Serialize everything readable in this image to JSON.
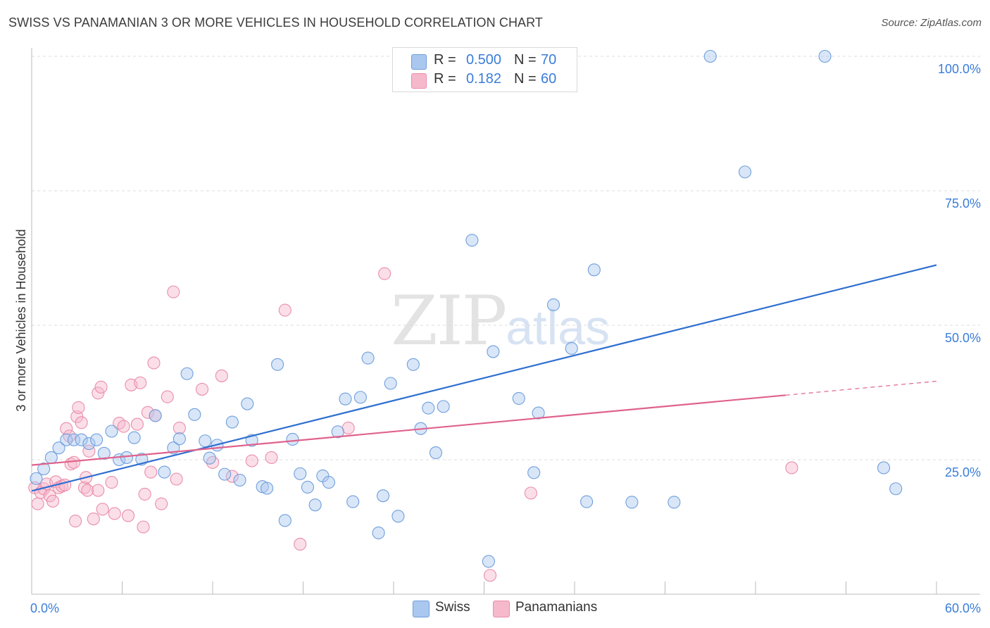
{
  "header": {
    "title": "SWISS VS PANAMANIAN 3 OR MORE VEHICLES IN HOUSEHOLD CORRELATION CHART",
    "source": "Source: ZipAtlas.com"
  },
  "watermark": {
    "zip": "ZIP",
    "atlas": "atlas"
  },
  "legend": {
    "rows": [
      {
        "r_label": "R =",
        "r_value": "0.500",
        "n_label": "N =",
        "n_value": "70",
        "color": "#aac8ef"
      },
      {
        "r_label": "R =",
        "r_value": "0.182",
        "n_label": "N =",
        "n_value": "60",
        "color": "#f6b9cc"
      }
    ]
  },
  "bottom_legend": [
    {
      "label": "Swiss",
      "color": "#aac8ef"
    },
    {
      "label": "Panamanians",
      "color": "#f6b9cc"
    }
  ],
  "chart_data": {
    "type": "scatter",
    "title": "SWISS VS PANAMANIAN 3 OR MORE VEHICLES IN HOUSEHOLD CORRELATION CHART",
    "xlabel": "",
    "ylabel": "3 or more Vehicles in Household",
    "xlim": [
      0,
      60
    ],
    "ylim": [
      0,
      100
    ],
    "x_tick_labels": [
      {
        "value": 0,
        "label": "0.0%"
      },
      {
        "value": 60,
        "label": "60.0%"
      }
    ],
    "y_tick_labels": [
      {
        "value": 25,
        "label": "25.0%"
      },
      {
        "value": 50,
        "label": "50.0%"
      },
      {
        "value": 75,
        "label": "75.0%"
      },
      {
        "value": 100,
        "label": "100.0%"
      }
    ],
    "colors": {
      "swiss_fill": "#aac8ef",
      "swiss_stroke": "#6f9fdc",
      "swiss_line": "#2f6fd0",
      "pan_fill": "#f6b9cc",
      "pan_stroke": "#ea8dab",
      "pan_line": "#e0628c",
      "grid": "#dcdcdc",
      "axis": "#bbbbbb",
      "tick_text": "#3b7dd8"
    },
    "series": [
      {
        "name": "Swiss",
        "trend": {
          "x0": 0,
          "y0": 19.2,
          "x1": 60,
          "y1": 61.2
        },
        "points": [
          [
            0.3,
            21.5
          ],
          [
            0.8,
            23.3
          ],
          [
            1.3,
            25.4
          ],
          [
            1.8,
            27.2
          ],
          [
            2.3,
            28.7
          ],
          [
            2.8,
            28.7
          ],
          [
            3.3,
            28.7
          ],
          [
            3.8,
            28.0
          ],
          [
            4.3,
            28.7
          ],
          [
            4.8,
            26.2
          ],
          [
            5.3,
            30.3
          ],
          [
            5.8,
            25.0
          ],
          [
            6.3,
            25.4
          ],
          [
            6.8,
            29.1
          ],
          [
            7.3,
            25.1
          ],
          [
            8.2,
            33.2
          ],
          [
            8.8,
            22.7
          ],
          [
            9.4,
            27.2
          ],
          [
            9.8,
            28.9
          ],
          [
            10.3,
            41.0
          ],
          [
            10.8,
            33.4
          ],
          [
            11.5,
            28.5
          ],
          [
            11.8,
            25.3
          ],
          [
            12.3,
            27.7
          ],
          [
            12.8,
            22.3
          ],
          [
            13.3,
            32.0
          ],
          [
            13.8,
            21.2
          ],
          [
            14.3,
            35.4
          ],
          [
            14.6,
            28.6
          ],
          [
            15.3,
            20.0
          ],
          [
            15.6,
            19.7
          ],
          [
            16.3,
            42.7
          ],
          [
            16.8,
            13.7
          ],
          [
            17.3,
            28.8
          ],
          [
            17.8,
            22.4
          ],
          [
            18.3,
            19.9
          ],
          [
            18.8,
            16.6
          ],
          [
            19.3,
            22.0
          ],
          [
            19.7,
            20.8
          ],
          [
            20.3,
            30.2
          ],
          [
            20.8,
            36.3
          ],
          [
            21.3,
            17.2
          ],
          [
            21.8,
            36.6
          ],
          [
            22.3,
            43.9
          ],
          [
            23.0,
            11.4
          ],
          [
            23.3,
            18.3
          ],
          [
            23.8,
            39.2
          ],
          [
            24.3,
            14.5
          ],
          [
            25.3,
            42.7
          ],
          [
            25.8,
            30.8
          ],
          [
            26.3,
            34.6
          ],
          [
            26.8,
            26.3
          ],
          [
            27.3,
            34.9
          ],
          [
            29.2,
            65.8
          ],
          [
            30.3,
            6.1
          ],
          [
            30.6,
            45.1
          ],
          [
            32.3,
            36.4
          ],
          [
            33.3,
            22.6
          ],
          [
            33.6,
            33.7
          ],
          [
            34.6,
            53.8
          ],
          [
            35.8,
            45.7
          ],
          [
            36.8,
            17.2
          ],
          [
            37.3,
            60.3
          ],
          [
            39.8,
            17.1
          ],
          [
            42.6,
            17.1
          ],
          [
            45.0,
            100.0
          ],
          [
            47.3,
            78.5
          ],
          [
            52.6,
            100.0
          ],
          [
            56.5,
            23.5
          ],
          [
            57.3,
            19.6
          ]
        ]
      },
      {
        "name": "Panamanians",
        "trend": {
          "x0": 0,
          "y0": 24.0,
          "x1": 50,
          "y1": 37.0,
          "x_dash_end": 60,
          "y_dash_end": 39.6
        },
        "points": [
          [
            0.2,
            19.8
          ],
          [
            0.4,
            16.8
          ],
          [
            0.6,
            18.9
          ],
          [
            0.8,
            19.6
          ],
          [
            1.0,
            20.5
          ],
          [
            1.2,
            18.3
          ],
          [
            1.4,
            17.3
          ],
          [
            1.6,
            20.9
          ],
          [
            1.8,
            19.8
          ],
          [
            2.0,
            20.1
          ],
          [
            2.2,
            20.3
          ],
          [
            2.3,
            30.8
          ],
          [
            2.5,
            29.4
          ],
          [
            2.6,
            24.2
          ],
          [
            2.8,
            24.5
          ],
          [
            2.9,
            13.6
          ],
          [
            3.0,
            33.0
          ],
          [
            3.1,
            34.7
          ],
          [
            3.3,
            31.9
          ],
          [
            3.5,
            19.8
          ],
          [
            3.6,
            21.7
          ],
          [
            3.7,
            19.3
          ],
          [
            3.8,
            26.6
          ],
          [
            4.1,
            14.0
          ],
          [
            4.4,
            37.4
          ],
          [
            4.4,
            19.3
          ],
          [
            4.6,
            38.5
          ],
          [
            4.7,
            15.8
          ],
          [
            5.3,
            20.8
          ],
          [
            5.5,
            15.0
          ],
          [
            5.8,
            31.8
          ],
          [
            6.1,
            31.2
          ],
          [
            6.4,
            14.6
          ],
          [
            6.6,
            38.9
          ],
          [
            7.0,
            31.6
          ],
          [
            7.2,
            39.3
          ],
          [
            7.4,
            12.5
          ],
          [
            7.5,
            18.6
          ],
          [
            7.7,
            33.8
          ],
          [
            7.9,
            22.7
          ],
          [
            8.1,
            43.0
          ],
          [
            8.2,
            33.2
          ],
          [
            8.6,
            16.8
          ],
          [
            9.0,
            36.7
          ],
          [
            9.4,
            56.2
          ],
          [
            9.6,
            21.4
          ],
          [
            9.8,
            30.9
          ],
          [
            11.3,
            38.1
          ],
          [
            12.0,
            24.5
          ],
          [
            12.6,
            40.6
          ],
          [
            13.3,
            21.9
          ],
          [
            14.6,
            24.8
          ],
          [
            15.9,
            25.4
          ],
          [
            16.8,
            52.8
          ],
          [
            17.8,
            9.3
          ],
          [
            21.0,
            30.9
          ],
          [
            23.4,
            59.6
          ],
          [
            30.4,
            3.5
          ],
          [
            33.1,
            18.8
          ],
          [
            50.4,
            23.5
          ]
        ]
      }
    ]
  }
}
